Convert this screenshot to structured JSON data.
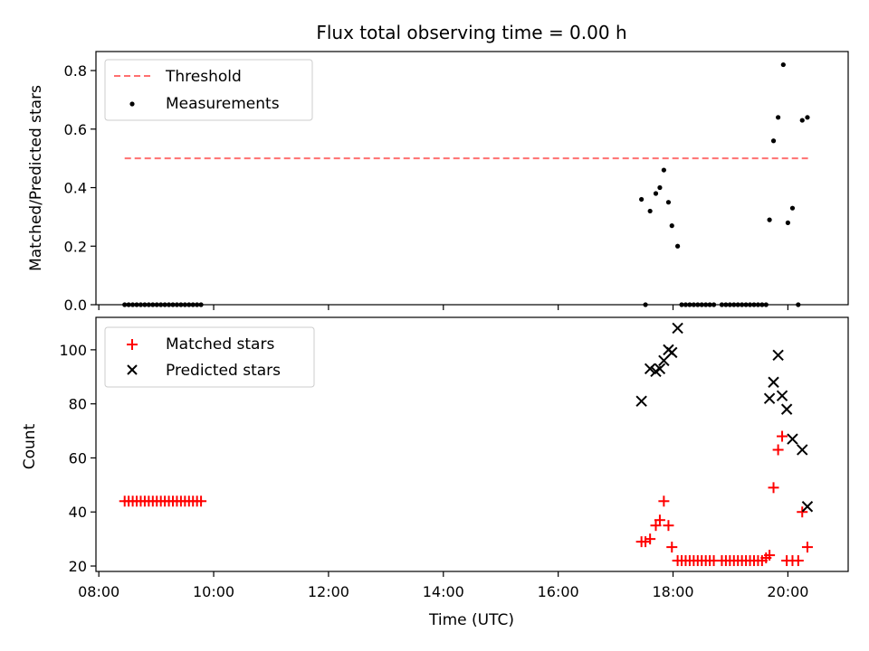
{
  "chart_data": [
    {
      "type": "scatter",
      "title": "Flux total observing time = 0.00 h",
      "xlabel": "",
      "ylabel": "Matched/Predicted stars",
      "xlim": [
        7.95,
        21.05
      ],
      "ylim": [
        0,
        0.865
      ],
      "xticks": [
        8,
        10,
        12,
        14,
        16,
        18,
        20
      ],
      "yticks": [
        0.0,
        0.2,
        0.4,
        0.6,
        0.8
      ],
      "ytick_labels": [
        "0.0",
        "0.2",
        "0.4",
        "0.6",
        "0.8"
      ],
      "threshold": {
        "name": "Threshold",
        "y": 0.5,
        "x_range": [
          8.45,
          20.35
        ],
        "color": "#ff7070"
      },
      "series": [
        {
          "name": "Measurements",
          "color": "#000000",
          "points": [
            [
              8.45,
              0
            ],
            [
              8.52,
              0
            ],
            [
              8.59,
              0
            ],
            [
              8.66,
              0
            ],
            [
              8.73,
              0
            ],
            [
              8.8,
              0
            ],
            [
              8.87,
              0
            ],
            [
              8.94,
              0
            ],
            [
              9.01,
              0
            ],
            [
              9.08,
              0
            ],
            [
              9.15,
              0
            ],
            [
              9.22,
              0
            ],
            [
              9.29,
              0
            ],
            [
              9.36,
              0
            ],
            [
              9.43,
              0
            ],
            [
              9.5,
              0
            ],
            [
              9.57,
              0
            ],
            [
              9.64,
              0
            ],
            [
              9.71,
              0
            ],
            [
              9.78,
              0
            ],
            [
              17.45,
              0.36
            ],
            [
              17.52,
              0
            ],
            [
              17.6,
              0.32
            ],
            [
              17.7,
              0.38
            ],
            [
              17.77,
              0.4
            ],
            [
              17.84,
              0.46
            ],
            [
              17.92,
              0.35
            ],
            [
              17.98,
              0.27
            ],
            [
              18.08,
              0.2
            ],
            [
              18.15,
              0
            ],
            [
              18.22,
              0
            ],
            [
              18.29,
              0
            ],
            [
              18.36,
              0
            ],
            [
              18.43,
              0
            ],
            [
              18.5,
              0
            ],
            [
              18.57,
              0
            ],
            [
              18.64,
              0
            ],
            [
              18.71,
              0
            ],
            [
              18.85,
              0
            ],
            [
              18.92,
              0
            ],
            [
              18.99,
              0
            ],
            [
              19.06,
              0
            ],
            [
              19.13,
              0
            ],
            [
              19.2,
              0
            ],
            [
              19.27,
              0
            ],
            [
              19.34,
              0
            ],
            [
              19.41,
              0
            ],
            [
              19.48,
              0
            ],
            [
              19.55,
              0
            ],
            [
              19.62,
              0
            ],
            [
              19.68,
              0.29
            ],
            [
              19.75,
              0.56
            ],
            [
              19.83,
              0.64
            ],
            [
              19.92,
              0.82
            ],
            [
              20.0,
              0.28
            ],
            [
              20.08,
              0.33
            ],
            [
              20.18,
              0
            ],
            [
              20.25,
              0.63
            ],
            [
              20.34,
              0.64
            ]
          ]
        }
      ],
      "legend": "upper-left"
    },
    {
      "type": "scatter",
      "title": "",
      "xlabel": "Time (UTC)",
      "ylabel": "Count",
      "xlim": [
        7.95,
        21.05
      ],
      "ylim": [
        18,
        112
      ],
      "xticks": [
        8,
        10,
        12,
        14,
        16,
        18,
        20
      ],
      "xtick_labels": [
        "08:00",
        "10:00",
        "12:00",
        "14:00",
        "16:00",
        "18:00",
        "20:00"
      ],
      "yticks": [
        20,
        40,
        60,
        80,
        100
      ],
      "ytick_labels": [
        "20",
        "40",
        "60",
        "80",
        "100"
      ],
      "series": [
        {
          "name": "Matched stars",
          "marker": "plus",
          "color": "#ff0000",
          "points": [
            [
              8.45,
              44
            ],
            [
              8.52,
              44
            ],
            [
              8.59,
              44
            ],
            [
              8.66,
              44
            ],
            [
              8.73,
              44
            ],
            [
              8.8,
              44
            ],
            [
              8.87,
              44
            ],
            [
              8.94,
              44
            ],
            [
              9.01,
              44
            ],
            [
              9.08,
              44
            ],
            [
              9.15,
              44
            ],
            [
              9.22,
              44
            ],
            [
              9.29,
              44
            ],
            [
              9.36,
              44
            ],
            [
              9.43,
              44
            ],
            [
              9.5,
              44
            ],
            [
              9.57,
              44
            ],
            [
              9.64,
              44
            ],
            [
              9.71,
              44
            ],
            [
              9.78,
              44
            ],
            [
              17.45,
              29
            ],
            [
              17.52,
              29
            ],
            [
              17.6,
              30
            ],
            [
              17.7,
              35
            ],
            [
              17.77,
              37
            ],
            [
              17.84,
              44
            ],
            [
              17.92,
              35
            ],
            [
              17.98,
              27
            ],
            [
              18.08,
              22
            ],
            [
              18.15,
              22
            ],
            [
              18.22,
              22
            ],
            [
              18.29,
              22
            ],
            [
              18.36,
              22
            ],
            [
              18.43,
              22
            ],
            [
              18.5,
              22
            ],
            [
              18.57,
              22
            ],
            [
              18.64,
              22
            ],
            [
              18.71,
              22
            ],
            [
              18.85,
              22
            ],
            [
              18.92,
              22
            ],
            [
              18.99,
              22
            ],
            [
              19.06,
              22
            ],
            [
              19.13,
              22
            ],
            [
              19.2,
              22
            ],
            [
              19.27,
              22
            ],
            [
              19.34,
              22
            ],
            [
              19.41,
              22
            ],
            [
              19.48,
              22
            ],
            [
              19.55,
              22
            ],
            [
              19.62,
              23
            ],
            [
              19.68,
              24
            ],
            [
              19.75,
              49
            ],
            [
              19.83,
              63
            ],
            [
              19.9,
              68
            ],
            [
              19.98,
              22
            ],
            [
              20.08,
              22
            ],
            [
              20.18,
              22
            ],
            [
              20.25,
              40
            ],
            [
              20.34,
              27
            ]
          ]
        },
        {
          "name": "Predicted stars",
          "marker": "x",
          "color": "#000000",
          "points": [
            [
              17.45,
              81
            ],
            [
              17.6,
              93
            ],
            [
              17.7,
              92
            ],
            [
              17.77,
              93
            ],
            [
              17.84,
              96
            ],
            [
              17.92,
              100
            ],
            [
              17.98,
              99
            ],
            [
              18.08,
              108
            ],
            [
              19.68,
              82
            ],
            [
              19.75,
              88
            ],
            [
              19.83,
              98
            ],
            [
              19.9,
              83
            ],
            [
              19.98,
              78
            ],
            [
              20.08,
              67
            ],
            [
              20.25,
              63
            ],
            [
              20.34,
              42
            ]
          ]
        }
      ],
      "legend": "upper-left"
    }
  ]
}
